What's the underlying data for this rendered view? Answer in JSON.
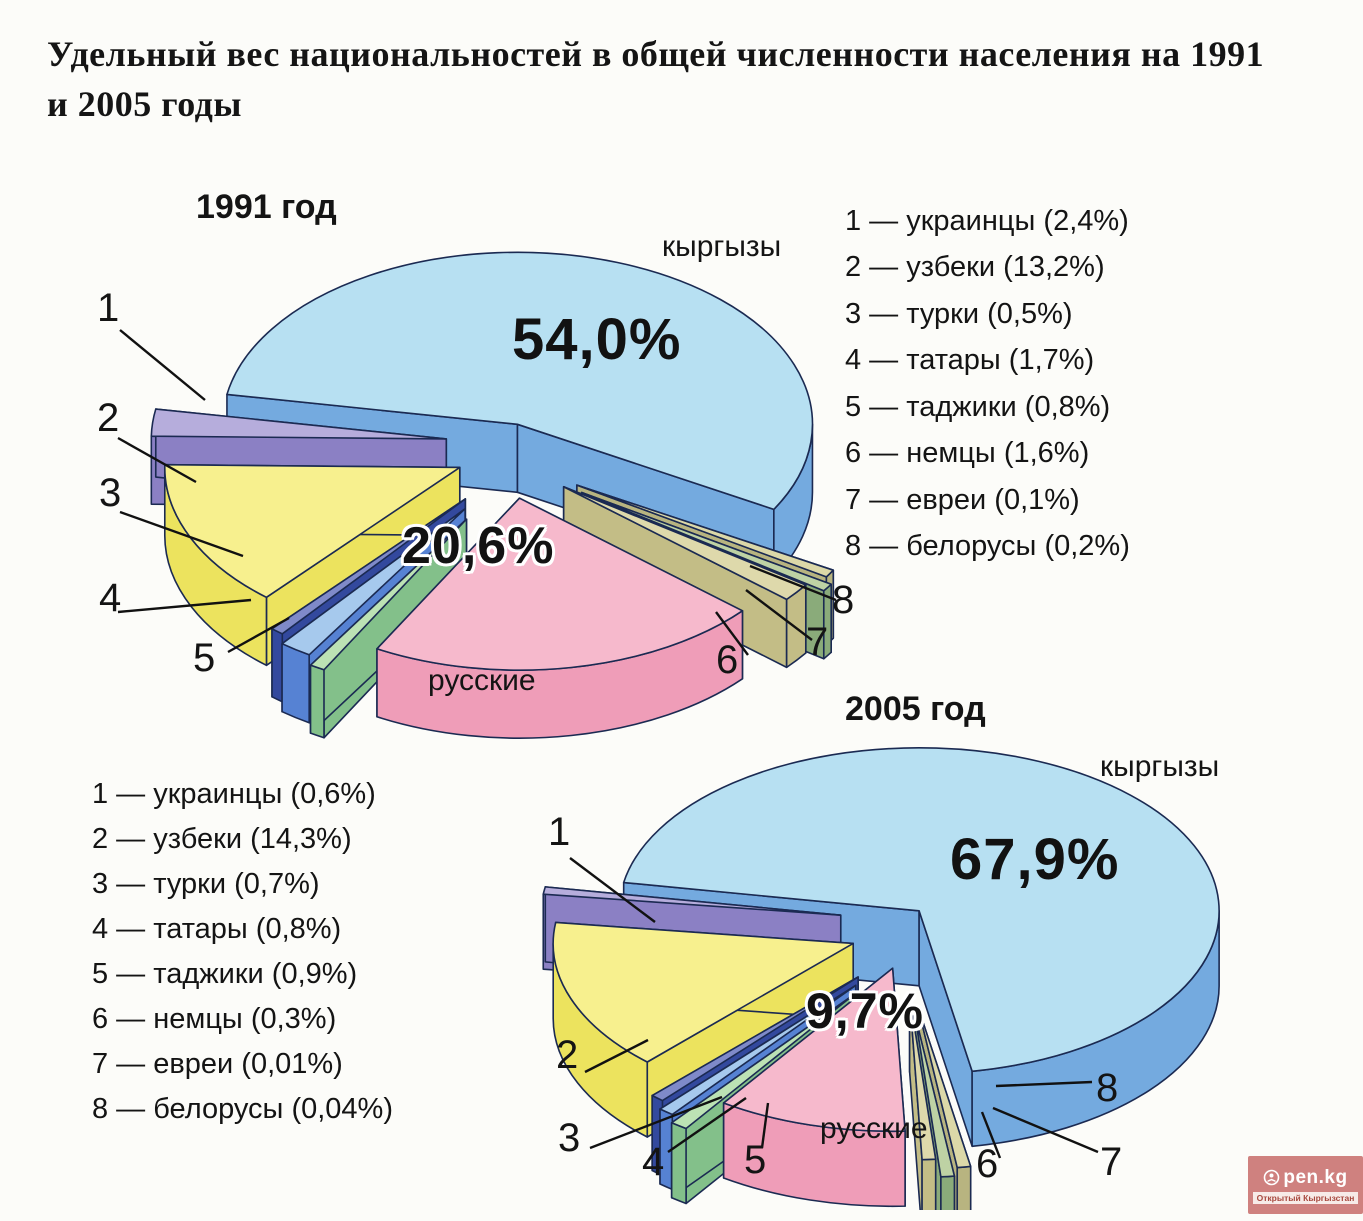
{
  "page": {
    "title": "Удельный вес национальностей в общей численности населения на 1991 и 2005 годы",
    "background": "#fcfcf9"
  },
  "colors": {
    "outline": "#1b2a52",
    "callout_line": "#111111",
    "text": "#141414",
    "slices": {
      "kyrgyz": {
        "top": "#b7e0f2",
        "side": "#74aadf"
      },
      "russians": {
        "top": "#f6b9cc",
        "side": "#ef9db8"
      },
      "uzbeks": {
        "top": "#f7f08e",
        "side": "#ece35e"
      },
      "ukrainians": {
        "top": "#b6addc",
        "side": "#8b80c4"
      },
      "tatars": {
        "top": "#a6c9ed",
        "side": "#5682d3"
      },
      "turks": {
        "top": "#7f8ac9",
        "side": "#33499e"
      },
      "tajiks": {
        "top": "#bce2b4",
        "side": "#83c08a"
      },
      "germans": {
        "top": "#ded9ab",
        "side": "#c3bd86"
      },
      "jews": {
        "top": "#bed2a4",
        "side": "#8aab7a"
      },
      "belarusians": {
        "top": "#dcd8a8",
        "side": "#b8b480"
      }
    }
  },
  "pies": [
    {
      "year_label": "1991 год",
      "outer_label": "кыргызы",
      "outer_value": "54,0%",
      "front_label": "русские",
      "front_value": "20,6%",
      "legend": [
        {
          "num": "1",
          "name": "украинцы",
          "value": "2,4%"
        },
        {
          "num": "2",
          "name": "узбеки",
          "value": "13,2%"
        },
        {
          "num": "3",
          "name": "турки",
          "value": "0,5%"
        },
        {
          "num": "4",
          "name": "татары",
          "value": "1,7%"
        },
        {
          "num": "5",
          "name": "таджики",
          "value": "0,8%"
        },
        {
          "num": "6",
          "name": "немцы",
          "value": "1,6%"
        },
        {
          "num": "7",
          "name": "евреи",
          "value": "0,1%"
        },
        {
          "num": "8",
          "name": "белорусы",
          "value": "0,2%"
        }
      ]
    },
    {
      "year_label": "2005 год",
      "outer_label": "кыргызы",
      "outer_value": "67,9%",
      "front_label": "русские",
      "front_value": "9,7%",
      "legend": [
        {
          "num": "1",
          "name": "украинцы",
          "value": "0,6%"
        },
        {
          "num": "2",
          "name": "узбеки",
          "value": "14,3%"
        },
        {
          "num": "3",
          "name": "турки",
          "value": "0,7%"
        },
        {
          "num": "4",
          "name": "татары",
          "value": "0,8%"
        },
        {
          "num": "5",
          "name": "таджики",
          "value": "0,9%"
        },
        {
          "num": "6",
          "name": "немцы",
          "value": "0,3%"
        },
        {
          "num": "7",
          "name": "евреи",
          "value": "0,01%"
        },
        {
          "num": "8",
          "name": "белорусы",
          "value": "0,04%"
        }
      ]
    }
  ],
  "watermark": {
    "brand": "pen.kg",
    "subtitle": "Открытый Кыргызстан",
    "bg": "#cf817f"
  },
  "chart_data": [
    {
      "type": "pie",
      "title": "1991 год",
      "unit": "percent of total population",
      "slices": [
        {
          "key": "kyrgyz",
          "label": "кыргызы",
          "value": 54.0
        },
        {
          "key": "russians",
          "label": "русские",
          "value": 20.6
        },
        {
          "key": "uzbeks",
          "label": "узбеки",
          "value": 13.2
        },
        {
          "key": "ukrainians",
          "label": "украинцы",
          "value": 2.4
        },
        {
          "key": "tatars",
          "label": "татары",
          "value": 1.7
        },
        {
          "key": "germans",
          "label": "немцы",
          "value": 1.6
        },
        {
          "key": "tajiks",
          "label": "таджики",
          "value": 0.8
        },
        {
          "key": "turks",
          "label": "турки",
          "value": 0.5
        },
        {
          "key": "belarusians",
          "label": "белорусы",
          "value": 0.2
        },
        {
          "key": "jews",
          "label": "евреи",
          "value": 0.1
        }
      ]
    },
    {
      "type": "pie",
      "title": "2005 год",
      "unit": "percent of total population",
      "slices": [
        {
          "key": "kyrgyz",
          "label": "кыргызы",
          "value": 67.9
        },
        {
          "key": "russians",
          "label": "русские",
          "value": 9.7
        },
        {
          "key": "uzbeks",
          "label": "узбеки",
          "value": 14.3
        },
        {
          "key": "ukrainians",
          "label": "украинцы",
          "value": 0.6
        },
        {
          "key": "tatars",
          "label": "татары",
          "value": 0.8
        },
        {
          "key": "germans",
          "label": "немцы",
          "value": 0.3
        },
        {
          "key": "tajiks",
          "label": "таджики",
          "value": 0.9
        },
        {
          "key": "turks",
          "label": "турки",
          "value": 0.7
        },
        {
          "key": "belarusians",
          "label": "белорусы",
          "value": 0.04
        },
        {
          "key": "jews",
          "label": "евреи",
          "value": 0.01
        }
      ]
    }
  ]
}
